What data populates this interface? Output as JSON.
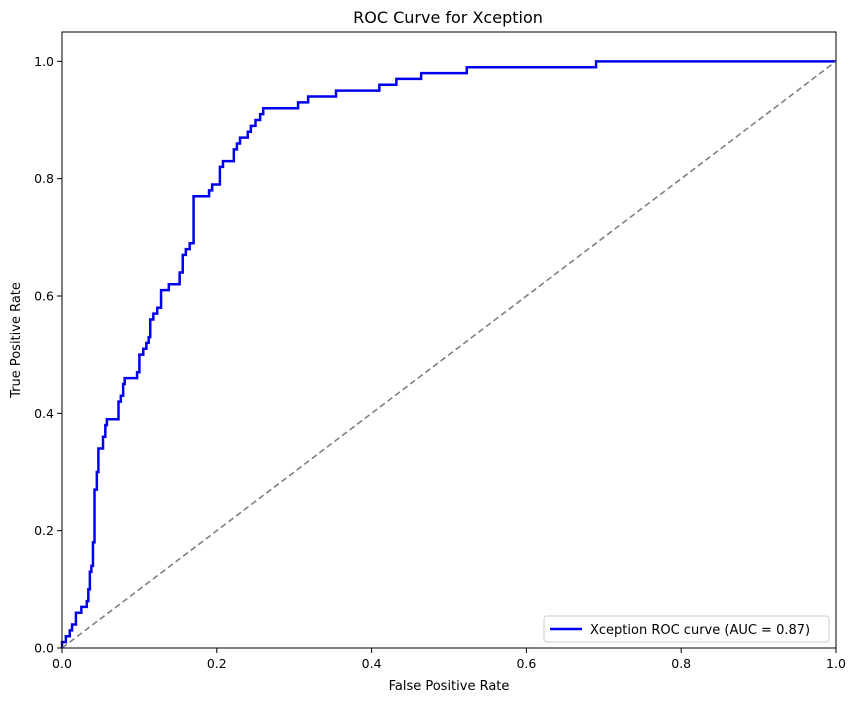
{
  "chart_data": {
    "type": "line",
    "title": "ROC Curve for Xception",
    "xlabel": "False Positive Rate",
    "ylabel": "True Positive Rate",
    "xlim": [
      0.0,
      1.0
    ],
    "ylim": [
      0.0,
      1.05
    ],
    "x_ticks": [
      "0.0",
      "0.2",
      "0.4",
      "0.6",
      "0.8",
      "1.0"
    ],
    "y_ticks": [
      "0.0",
      "0.2",
      "0.4",
      "0.6",
      "0.8",
      "1.0"
    ],
    "grid": false,
    "legend_position": "lower-right",
    "series": [
      {
        "name": "Xception ROC curve (AUC = 0.87)",
        "color": "#0000ee",
        "style": "solid",
        "step": true,
        "x": [
          0.0,
          0.0,
          0.005,
          0.005,
          0.01,
          0.01,
          0.013,
          0.013,
          0.018,
          0.018,
          0.025,
          0.025,
          0.032,
          0.032,
          0.034,
          0.034,
          0.036,
          0.036,
          0.038,
          0.038,
          0.04,
          0.04,
          0.042,
          0.042,
          0.045,
          0.045,
          0.047,
          0.047,
          0.053,
          0.053,
          0.056,
          0.056,
          0.058,
          0.058,
          0.073,
          0.073,
          0.076,
          0.076,
          0.079,
          0.079,
          0.081,
          0.081,
          0.097,
          0.097,
          0.1,
          0.1,
          0.105,
          0.105,
          0.109,
          0.109,
          0.112,
          0.112,
          0.114,
          0.114,
          0.118,
          0.118,
          0.123,
          0.123,
          0.128,
          0.128,
          0.138,
          0.138,
          0.152,
          0.152,
          0.156,
          0.156,
          0.16,
          0.16,
          0.165,
          0.165,
          0.17,
          0.17,
          0.19,
          0.19,
          0.194,
          0.194,
          0.204,
          0.204,
          0.208,
          0.208,
          0.222,
          0.222,
          0.226,
          0.226,
          0.23,
          0.23,
          0.24,
          0.24,
          0.244,
          0.244,
          0.25,
          0.25,
          0.256,
          0.256,
          0.26,
          0.26,
          0.305,
          0.305,
          0.318,
          0.318,
          0.354,
          0.354,
          0.41,
          0.41,
          0.432,
          0.432,
          0.464,
          0.464,
          0.523,
          0.523,
          0.69,
          0.69,
          1.0
        ],
        "y": [
          0.0,
          0.01,
          0.01,
          0.02,
          0.02,
          0.03,
          0.03,
          0.04,
          0.04,
          0.06,
          0.06,
          0.07,
          0.07,
          0.08,
          0.08,
          0.1,
          0.1,
          0.13,
          0.13,
          0.14,
          0.14,
          0.18,
          0.18,
          0.27,
          0.27,
          0.3,
          0.3,
          0.34,
          0.34,
          0.36,
          0.36,
          0.38,
          0.38,
          0.39,
          0.39,
          0.42,
          0.42,
          0.43,
          0.43,
          0.45,
          0.45,
          0.46,
          0.46,
          0.47,
          0.47,
          0.5,
          0.5,
          0.51,
          0.51,
          0.52,
          0.52,
          0.53,
          0.53,
          0.56,
          0.56,
          0.57,
          0.57,
          0.58,
          0.58,
          0.61,
          0.61,
          0.62,
          0.62,
          0.64,
          0.64,
          0.67,
          0.67,
          0.68,
          0.68,
          0.69,
          0.69,
          0.77,
          0.77,
          0.78,
          0.78,
          0.79,
          0.79,
          0.82,
          0.82,
          0.83,
          0.83,
          0.85,
          0.85,
          0.86,
          0.86,
          0.87,
          0.87,
          0.88,
          0.88,
          0.89,
          0.89,
          0.9,
          0.9,
          0.91,
          0.91,
          0.92,
          0.92,
          0.93,
          0.93,
          0.94,
          0.94,
          0.95,
          0.95,
          0.96,
          0.96,
          0.97,
          0.97,
          0.98,
          0.98,
          0.99,
          0.99,
          1.0,
          1.0
        ]
      },
      {
        "color": "#808080",
        "style": "dashed",
        "x": [
          0.0,
          1.0
        ],
        "y": [
          0.0,
          1.0
        ]
      }
    ]
  }
}
